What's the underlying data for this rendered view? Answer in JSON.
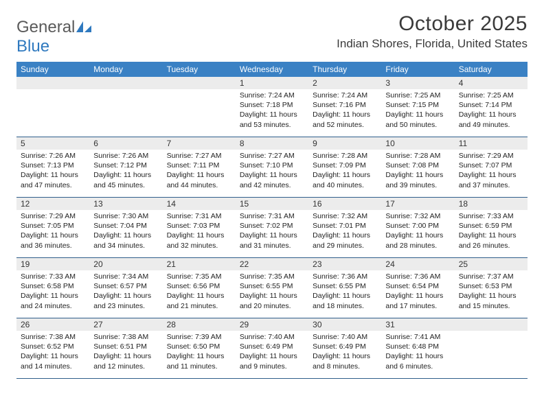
{
  "logo": {
    "word1": "General",
    "word2": "Blue"
  },
  "title": "October 2025",
  "location": "Indian Shores, Florida, United States",
  "colors": {
    "header_bg": "#3a81c4",
    "header_text": "#ffffff",
    "daynum_bg": "#ececec",
    "row_border": "#2e5d8a",
    "logo_gray": "#5a5a5a",
    "logo_blue": "#2f79bf",
    "text": "#222222"
  },
  "dayNames": [
    "Sunday",
    "Monday",
    "Tuesday",
    "Wednesday",
    "Thursday",
    "Friday",
    "Saturday"
  ],
  "weeks": [
    [
      {
        "n": "",
        "lines": []
      },
      {
        "n": "",
        "lines": []
      },
      {
        "n": "",
        "lines": []
      },
      {
        "n": "1",
        "lines": [
          "Sunrise: 7:24 AM",
          "Sunset: 7:18 PM",
          "Daylight: 11 hours",
          "and 53 minutes."
        ]
      },
      {
        "n": "2",
        "lines": [
          "Sunrise: 7:24 AM",
          "Sunset: 7:16 PM",
          "Daylight: 11 hours",
          "and 52 minutes."
        ]
      },
      {
        "n": "3",
        "lines": [
          "Sunrise: 7:25 AM",
          "Sunset: 7:15 PM",
          "Daylight: 11 hours",
          "and 50 minutes."
        ]
      },
      {
        "n": "4",
        "lines": [
          "Sunrise: 7:25 AM",
          "Sunset: 7:14 PM",
          "Daylight: 11 hours",
          "and 49 minutes."
        ]
      }
    ],
    [
      {
        "n": "5",
        "lines": [
          "Sunrise: 7:26 AM",
          "Sunset: 7:13 PM",
          "Daylight: 11 hours",
          "and 47 minutes."
        ]
      },
      {
        "n": "6",
        "lines": [
          "Sunrise: 7:26 AM",
          "Sunset: 7:12 PM",
          "Daylight: 11 hours",
          "and 45 minutes."
        ]
      },
      {
        "n": "7",
        "lines": [
          "Sunrise: 7:27 AM",
          "Sunset: 7:11 PM",
          "Daylight: 11 hours",
          "and 44 minutes."
        ]
      },
      {
        "n": "8",
        "lines": [
          "Sunrise: 7:27 AM",
          "Sunset: 7:10 PM",
          "Daylight: 11 hours",
          "and 42 minutes."
        ]
      },
      {
        "n": "9",
        "lines": [
          "Sunrise: 7:28 AM",
          "Sunset: 7:09 PM",
          "Daylight: 11 hours",
          "and 40 minutes."
        ]
      },
      {
        "n": "10",
        "lines": [
          "Sunrise: 7:28 AM",
          "Sunset: 7:08 PM",
          "Daylight: 11 hours",
          "and 39 minutes."
        ]
      },
      {
        "n": "11",
        "lines": [
          "Sunrise: 7:29 AM",
          "Sunset: 7:07 PM",
          "Daylight: 11 hours",
          "and 37 minutes."
        ]
      }
    ],
    [
      {
        "n": "12",
        "lines": [
          "Sunrise: 7:29 AM",
          "Sunset: 7:05 PM",
          "Daylight: 11 hours",
          "and 36 minutes."
        ]
      },
      {
        "n": "13",
        "lines": [
          "Sunrise: 7:30 AM",
          "Sunset: 7:04 PM",
          "Daylight: 11 hours",
          "and 34 minutes."
        ]
      },
      {
        "n": "14",
        "lines": [
          "Sunrise: 7:31 AM",
          "Sunset: 7:03 PM",
          "Daylight: 11 hours",
          "and 32 minutes."
        ]
      },
      {
        "n": "15",
        "lines": [
          "Sunrise: 7:31 AM",
          "Sunset: 7:02 PM",
          "Daylight: 11 hours",
          "and 31 minutes."
        ]
      },
      {
        "n": "16",
        "lines": [
          "Sunrise: 7:32 AM",
          "Sunset: 7:01 PM",
          "Daylight: 11 hours",
          "and 29 minutes."
        ]
      },
      {
        "n": "17",
        "lines": [
          "Sunrise: 7:32 AM",
          "Sunset: 7:00 PM",
          "Daylight: 11 hours",
          "and 28 minutes."
        ]
      },
      {
        "n": "18",
        "lines": [
          "Sunrise: 7:33 AM",
          "Sunset: 6:59 PM",
          "Daylight: 11 hours",
          "and 26 minutes."
        ]
      }
    ],
    [
      {
        "n": "19",
        "lines": [
          "Sunrise: 7:33 AM",
          "Sunset: 6:58 PM",
          "Daylight: 11 hours",
          "and 24 minutes."
        ]
      },
      {
        "n": "20",
        "lines": [
          "Sunrise: 7:34 AM",
          "Sunset: 6:57 PM",
          "Daylight: 11 hours",
          "and 23 minutes."
        ]
      },
      {
        "n": "21",
        "lines": [
          "Sunrise: 7:35 AM",
          "Sunset: 6:56 PM",
          "Daylight: 11 hours",
          "and 21 minutes."
        ]
      },
      {
        "n": "22",
        "lines": [
          "Sunrise: 7:35 AM",
          "Sunset: 6:55 PM",
          "Daylight: 11 hours",
          "and 20 minutes."
        ]
      },
      {
        "n": "23",
        "lines": [
          "Sunrise: 7:36 AM",
          "Sunset: 6:55 PM",
          "Daylight: 11 hours",
          "and 18 minutes."
        ]
      },
      {
        "n": "24",
        "lines": [
          "Sunrise: 7:36 AM",
          "Sunset: 6:54 PM",
          "Daylight: 11 hours",
          "and 17 minutes."
        ]
      },
      {
        "n": "25",
        "lines": [
          "Sunrise: 7:37 AM",
          "Sunset: 6:53 PM",
          "Daylight: 11 hours",
          "and 15 minutes."
        ]
      }
    ],
    [
      {
        "n": "26",
        "lines": [
          "Sunrise: 7:38 AM",
          "Sunset: 6:52 PM",
          "Daylight: 11 hours",
          "and 14 minutes."
        ]
      },
      {
        "n": "27",
        "lines": [
          "Sunrise: 7:38 AM",
          "Sunset: 6:51 PM",
          "Daylight: 11 hours",
          "and 12 minutes."
        ]
      },
      {
        "n": "28",
        "lines": [
          "Sunrise: 7:39 AM",
          "Sunset: 6:50 PM",
          "Daylight: 11 hours",
          "and 11 minutes."
        ]
      },
      {
        "n": "29",
        "lines": [
          "Sunrise: 7:40 AM",
          "Sunset: 6:49 PM",
          "Daylight: 11 hours",
          "and 9 minutes."
        ]
      },
      {
        "n": "30",
        "lines": [
          "Sunrise: 7:40 AM",
          "Sunset: 6:49 PM",
          "Daylight: 11 hours",
          "and 8 minutes."
        ]
      },
      {
        "n": "31",
        "lines": [
          "Sunrise: 7:41 AM",
          "Sunset: 6:48 PM",
          "Daylight: 11 hours",
          "and 6 minutes."
        ]
      },
      {
        "n": "",
        "lines": []
      }
    ]
  ]
}
